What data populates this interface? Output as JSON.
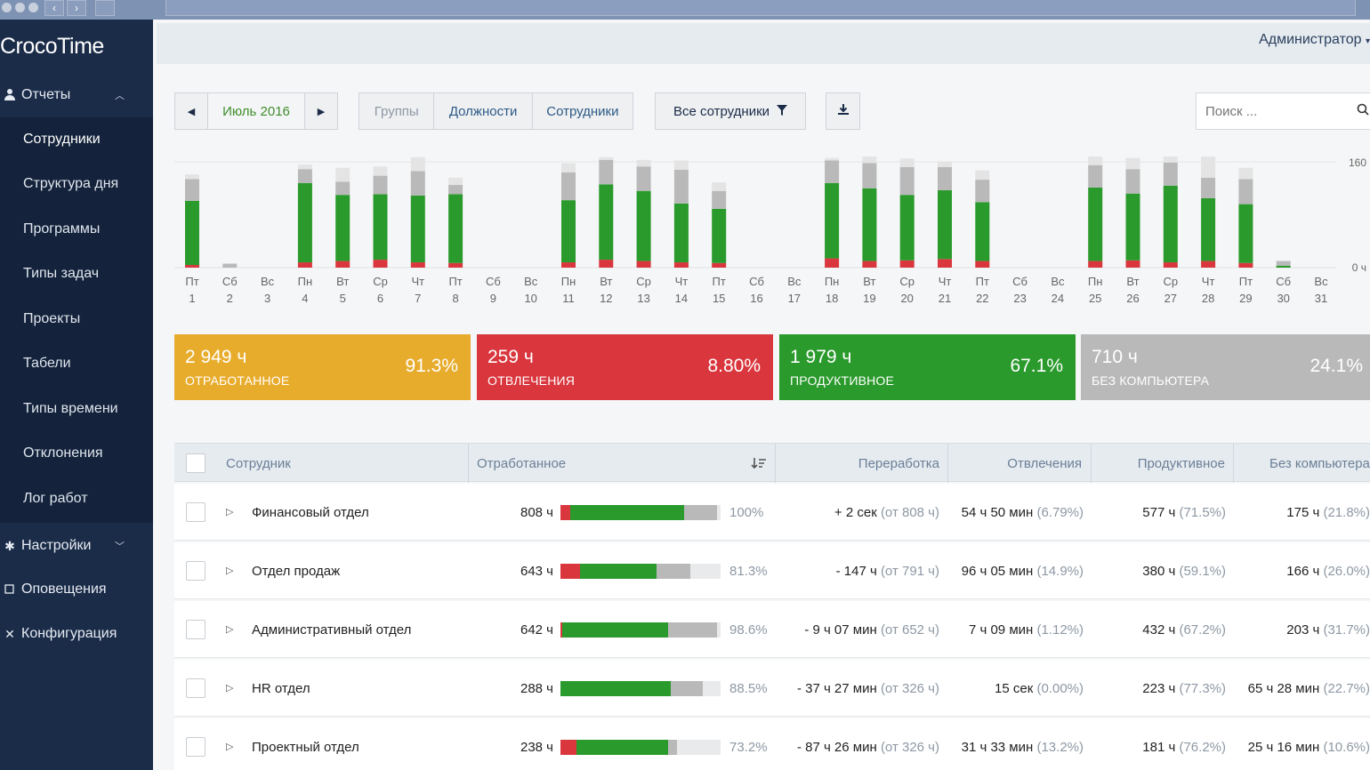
{
  "app": {
    "title": "CrocoTime",
    "user": "Администратор"
  },
  "sidebar": {
    "reports": {
      "label": "Отчеты"
    },
    "items": [
      {
        "label": "Сотрудники",
        "active": true
      },
      {
        "label": "Структура дня"
      },
      {
        "label": "Программы"
      },
      {
        "label": "Типы задач"
      },
      {
        "label": "Проекты"
      },
      {
        "label": "Табели"
      },
      {
        "label": "Типы времени"
      },
      {
        "label": "Отклонения"
      },
      {
        "label": "Лог работ"
      }
    ],
    "settings": {
      "label": "Настройки"
    },
    "notifications": {
      "label": "Оповещения"
    },
    "configuration": {
      "label": "Конфигурация"
    }
  },
  "toolbar": {
    "period": "Июль 2016",
    "segments": [
      "Группы",
      "Должности",
      "Сотрудники"
    ],
    "filter": "Все сотрудники",
    "search_placeholder": "Поиск ..."
  },
  "colors": {
    "worked": "#e8ac2c",
    "distraction": "#d9363e",
    "productive": "#2a9a2c",
    "no_computer": "#b9b9b9",
    "sidebar": "#1b2c48",
    "accent": "#2d5a86"
  },
  "chart_data": {
    "type": "bar",
    "stacked": true,
    "y_ticks": [
      "160",
      "0 ч"
    ],
    "ylim": [
      0,
      160
    ],
    "days": [
      {
        "dow": "Пт",
        "d": "1",
        "red": 4,
        "green": 97,
        "gray": 33,
        "light": 7
      },
      {
        "dow": "Сб",
        "d": "2",
        "red": 0,
        "green": 0,
        "gray": 6,
        "light": 0
      },
      {
        "dow": "Вс",
        "d": "3",
        "red": 0,
        "green": 0,
        "gray": 0,
        "light": 0
      },
      {
        "dow": "Пн",
        "d": "4",
        "red": 8,
        "green": 120,
        "gray": 21,
        "light": 7
      },
      {
        "dow": "Вт",
        "d": "5",
        "red": 10,
        "green": 100,
        "gray": 20,
        "light": 21
      },
      {
        "dow": "Ср",
        "d": "6",
        "red": 12,
        "green": 99,
        "gray": 28,
        "light": 14
      },
      {
        "dow": "Чт",
        "d": "7",
        "red": 8,
        "green": 101,
        "gray": 37,
        "light": 21
      },
      {
        "dow": "Пт",
        "d": "8",
        "red": 7,
        "green": 104,
        "gray": 14,
        "light": 11
      },
      {
        "dow": "Сб",
        "d": "9",
        "red": 0,
        "green": 0,
        "gray": 0,
        "light": 0
      },
      {
        "dow": "Вс",
        "d": "10",
        "red": 0,
        "green": 0,
        "gray": 0,
        "light": 0
      },
      {
        "dow": "Пн",
        "d": "11",
        "red": 8,
        "green": 94,
        "gray": 42,
        "light": 14
      },
      {
        "dow": "Вт",
        "d": "12",
        "red": 12,
        "green": 114,
        "gray": 37,
        "light": 4
      },
      {
        "dow": "Ср",
        "d": "13",
        "red": 10,
        "green": 106,
        "gray": 37,
        "light": 10
      },
      {
        "dow": "Чт",
        "d": "14",
        "red": 8,
        "green": 89,
        "gray": 51,
        "light": 14
      },
      {
        "dow": "Пт",
        "d": "15",
        "red": 7,
        "green": 82,
        "gray": 27,
        "light": 13
      },
      {
        "dow": "Сб",
        "d": "16",
        "red": 0,
        "green": 0,
        "gray": 0,
        "light": 0
      },
      {
        "dow": "Вс",
        "d": "17",
        "red": 0,
        "green": 0,
        "gray": 0,
        "light": 0
      },
      {
        "dow": "Пн",
        "d": "18",
        "red": 14,
        "green": 114,
        "gray": 34,
        "light": 4
      },
      {
        "dow": "Вт",
        "d": "19",
        "red": 10,
        "green": 110,
        "gray": 38,
        "light": 10
      },
      {
        "dow": "Ср",
        "d": "20",
        "red": 11,
        "green": 99,
        "gray": 42,
        "light": 13
      },
      {
        "dow": "Чт",
        "d": "21",
        "red": 13,
        "green": 104,
        "gray": 35,
        "light": 8
      },
      {
        "dow": "Пт",
        "d": "22",
        "red": 10,
        "green": 89,
        "gray": 34,
        "light": 14
      },
      {
        "dow": "Сб",
        "d": "23",
        "red": 0,
        "green": 0,
        "gray": 0,
        "light": 0
      },
      {
        "dow": "Вс",
        "d": "24",
        "red": 0,
        "green": 0,
        "gray": 0,
        "light": 0
      },
      {
        "dow": "Пн",
        "d": "25",
        "red": 10,
        "green": 111,
        "gray": 34,
        "light": 14
      },
      {
        "dow": "Вт",
        "d": "26",
        "red": 11,
        "green": 101,
        "gray": 37,
        "light": 17
      },
      {
        "dow": "Ср",
        "d": "27",
        "red": 8,
        "green": 116,
        "gray": 35,
        "light": 10
      },
      {
        "dow": "Чт",
        "d": "28",
        "red": 10,
        "green": 95,
        "gray": 31,
        "light": 35
      },
      {
        "dow": "Пт",
        "d": "29",
        "red": 7,
        "green": 89,
        "gray": 38,
        "light": 17
      },
      {
        "dow": "Сб",
        "d": "30",
        "red": 0,
        "green": 3,
        "gray": 7,
        "light": 0
      },
      {
        "dow": "Вс",
        "d": "31",
        "red": 0,
        "green": 0,
        "gray": 0,
        "light": 0
      }
    ]
  },
  "cards": [
    {
      "value": "2 949 ч",
      "label": "ОТРАБОТАННОЕ",
      "pct": "91.3%"
    },
    {
      "value": "259 ч",
      "label": "ОТВЛЕЧЕНИЯ",
      "pct": "8.80%"
    },
    {
      "value": "1 979 ч",
      "label": "ПРОДУКТИВНОЕ",
      "pct": "67.1%"
    },
    {
      "value": "710 ч",
      "label": "БЕЗ КОМПЬЮТЕРА",
      "pct": "24.1%"
    }
  ],
  "table": {
    "headers": {
      "employee": "Сотрудник",
      "worked": "Отработанное",
      "overtime": "Переработка",
      "distractions": "Отвлечения",
      "productive": "Продуктивное",
      "no_computer": "Без компьютера"
    },
    "rows": [
      {
        "name": "Финансовый отдел",
        "worked": "808 ч",
        "bar": {
          "red": 6,
          "green": 71,
          "gray": 21
        },
        "pct": "100%",
        "ot": "+ 2 сек",
        "ot_of": "(от 808 ч)",
        "dist": "54 ч 50 мин",
        "dist_pct": "(6.79%)",
        "prod": "577 ч",
        "prod_pct": "(71.5%)",
        "nocomp": "175 ч",
        "nocomp_pct": "(21.8%)"
      },
      {
        "name": "Отдел продаж",
        "worked": "643 ч",
        "bar": {
          "red": 12,
          "green": 48,
          "gray": 21
        },
        "pct": "81.3%",
        "ot": "- 147 ч",
        "ot_of": "(от 791 ч)",
        "dist": "96 ч 05 мин",
        "dist_pct": "(14.9%)",
        "prod": "380 ч",
        "prod_pct": "(59.1%)",
        "nocomp": "166 ч",
        "nocomp_pct": "(26.0%)"
      },
      {
        "name": "Административный отдел",
        "worked": "642 ч",
        "bar": {
          "red": 1,
          "green": 66,
          "gray": 31
        },
        "pct": "98.6%",
        "ot": "- 9 ч 07 мин",
        "ot_of": "(от 652 ч)",
        "dist": "7 ч 09 мин",
        "dist_pct": "(1.12%)",
        "prod": "432 ч",
        "prod_pct": "(67.2%)",
        "nocomp": "203 ч",
        "nocomp_pct": "(31.7%)"
      },
      {
        "name": "HR отдел",
        "worked": "288 ч",
        "bar": {
          "red": 0,
          "green": 69,
          "gray": 20
        },
        "pct": "88.5%",
        "ot": "- 37 ч 27 мин",
        "ot_of": "(от 326 ч)",
        "dist": "15 сек",
        "dist_pct": "(0.00%)",
        "prod": "223 ч",
        "prod_pct": "(77.3%)",
        "nocomp": "65 ч 28 мин",
        "nocomp_pct": "(22.7%)"
      },
      {
        "name": "Проектный отдел",
        "worked": "238 ч",
        "bar": {
          "red": 10,
          "green": 57,
          "gray": 6
        },
        "pct": "73.2%",
        "ot": "- 87 ч 26 мин",
        "ot_of": "(от 326 ч)",
        "dist": "31 ч 33 мин",
        "dist_pct": "(13.2%)",
        "prod": "181 ч",
        "prod_pct": "(76.2%)",
        "nocomp": "25 ч 16 мин",
        "nocomp_pct": "(10.6%)"
      }
    ]
  }
}
